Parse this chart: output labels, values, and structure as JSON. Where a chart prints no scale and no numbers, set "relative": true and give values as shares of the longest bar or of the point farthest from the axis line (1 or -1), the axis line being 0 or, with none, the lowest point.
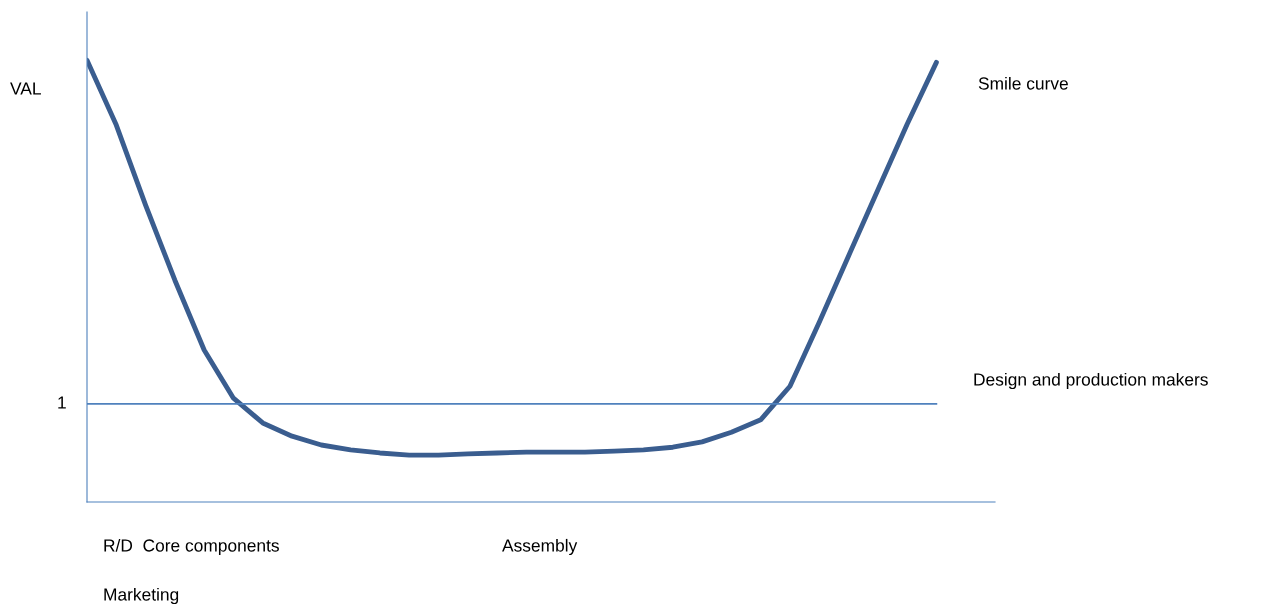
{
  "chart_data": {
    "type": "line",
    "relative": true,
    "ylabel": "VAL",
    "categories": [
      null,
      null,
      null,
      null,
      null,
      null,
      null,
      null,
      null,
      null,
      null,
      null,
      null,
      null,
      null,
      null,
      null,
      null,
      null,
      null,
      null,
      null,
      null,
      null,
      null,
      null,
      null,
      null,
      null,
      null,
      null,
      null
    ],
    "series": [
      {
        "color": "#3a5d8f",
        "values": [
          1.0,
          0.853,
          0.672,
          0.502,
          0.344,
          0.235,
          0.179,
          0.149,
          0.129,
          0.118,
          0.111,
          0.106,
          0.106,
          0.109,
          0.111,
          0.113,
          0.113,
          0.113,
          0.115,
          0.118,
          0.124,
          0.136,
          0.158,
          0.186,
          0.262,
          0.407,
          0.557,
          0.706,
          0.855,
          0.995,
          null,
          null
        ]
      }
    ],
    "ref_lines": [
      {
        "axis": "y",
        "value": 0.222,
        "color": "#4f81bd"
      }
    ],
    "annotations": [
      "Smile curve",
      "Design and production makers",
      "R/D  Core components",
      "Assembly",
      "Marketing",
      "1"
    ],
    "legend": false,
    "marker": "none",
    "line_style": "solid"
  }
}
